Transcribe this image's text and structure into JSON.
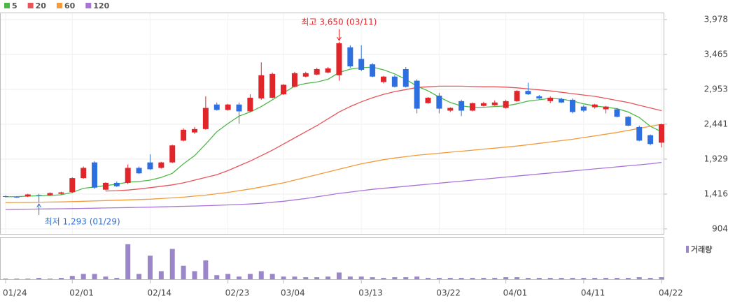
{
  "chart_data": {
    "type": "candlestick",
    "categories": [
      "01/24",
      null,
      null,
      null,
      null,
      null,
      "02/01",
      null,
      null,
      null,
      null,
      null,
      null,
      "02/14",
      null,
      null,
      null,
      null,
      null,
      null,
      "02/23",
      null,
      null,
      null,
      null,
      "03/04",
      null,
      null,
      null,
      null,
      null,
      null,
      "03/13",
      null,
      null,
      null,
      null,
      null,
      null,
      "03/22",
      null,
      null,
      null,
      null,
      null,
      "04/01",
      null,
      null,
      null,
      null,
      null,
      null,
      "04/11",
      null,
      null,
      null,
      null,
      null,
      null,
      "04/22"
    ],
    "open": [
      1385,
      1375,
      1380,
      1400,
      1400,
      1420,
      1445,
      1650,
      1880,
      1480,
      1580,
      1580,
      1800,
      1880,
      1800,
      1880,
      2200,
      2320,
      2370,
      2730,
      2650,
      2730,
      2630,
      2820,
      2830,
      2880,
      2990,
      3140,
      3170,
      3200,
      3160,
      3570,
      3400,
      3320,
      3060,
      3140,
      3250,
      3080,
      2750,
      2860,
      2640,
      2780,
      2640,
      2710,
      2720,
      2680,
      2780,
      2930,
      2850,
      2780,
      2810,
      2800,
      2700,
      2690,
      2660,
      2660,
      2550,
      2400,
      2280,
      2170
    ],
    "high": [
      1395,
      1385,
      1420,
      1420,
      1440,
      1450,
      1660,
      1820,
      1900,
      1590,
      1600,
      1850,
      1820,
      2000,
      1890,
      2140,
      2380,
      2400,
      2850,
      2760,
      2740,
      2760,
      2880,
      3350,
      3200,
      3030,
      3210,
      3210,
      3270,
      3280,
      3650,
      3600,
      3600,
      3340,
      3150,
      3160,
      3280,
      3100,
      2840,
      2900,
      2690,
      2800,
      2760,
      2770,
      2790,
      2800,
      2940,
      3050,
      2870,
      2850,
      2830,
      2820,
      2720,
      2740,
      2710,
      2680,
      2560,
      2420,
      2290,
      2450
    ],
    "low": [
      1365,
      1360,
      1370,
      1293,
      1390,
      1410,
      1430,
      1640,
      1490,
      1470,
      1520,
      1560,
      1710,
      1770,
      1790,
      1870,
      2190,
      2300,
      2360,
      2640,
      2640,
      2450,
      2620,
      2800,
      2820,
      2870,
      2980,
      3130,
      3160,
      3190,
      3080,
      3270,
      3220,
      3130,
      3040,
      2980,
      2980,
      2600,
      2740,
      2600,
      2620,
      2560,
      2630,
      2700,
      2710,
      2670,
      2770,
      2870,
      2810,
      2750,
      2750,
      2600,
      2620,
      2670,
      2600,
      2540,
      2410,
      2190,
      2130,
      2100
    ],
    "close": [
      1375,
      1370,
      1410,
      1395,
      1430,
      1440,
      1650,
      1800,
      1510,
      1580,
      1530,
      1800,
      1720,
      1780,
      1880,
      2130,
      2360,
      2370,
      2680,
      2650,
      2730,
      2630,
      2830,
      3160,
      3180,
      3020,
      3190,
      3190,
      3250,
      3260,
      3630,
      3290,
      3240,
      3140,
      3140,
      2990,
      2990,
      2670,
      2830,
      2670,
      2680,
      2640,
      2750,
      2750,
      2760,
      2780,
      2930,
      2880,
      2820,
      2830,
      2760,
      2620,
      2640,
      2730,
      2700,
      2550,
      2420,
      2200,
      2150,
      2440
    ],
    "up_color": "#e0262b",
    "down_color": "#2e6fe0",
    "series": [
      {
        "name": "5",
        "color": "#4cb848",
        "values": [
          1375,
          1378,
          1385,
          1390,
          1395,
          1405,
          1440,
          1500,
          1520,
          1540,
          1560,
          1590,
          1600,
          1620,
          1660,
          1720,
          1860,
          1980,
          2150,
          2330,
          2450,
          2560,
          2620,
          2700,
          2800,
          2900,
          3000,
          3040,
          3060,
          3100,
          3200,
          3250,
          3270,
          3280,
          3240,
          3180,
          3100,
          3000,
          2930,
          2840,
          2760,
          2710,
          2690,
          2690,
          2700,
          2710,
          2740,
          2780,
          2800,
          2820,
          2810,
          2780,
          2740,
          2710,
          2690,
          2670,
          2620,
          2540,
          2410,
          2330
        ]
      },
      {
        "name": "20",
        "color": "#e8545a",
        "values": [
          null,
          null,
          null,
          null,
          null,
          null,
          null,
          null,
          null,
          1460,
          1465,
          1475,
          1490,
          1510,
          1530,
          1550,
          1580,
          1620,
          1660,
          1700,
          1760,
          1830,
          1900,
          1980,
          2060,
          2150,
          2240,
          2330,
          2420,
          2520,
          2620,
          2700,
          2770,
          2830,
          2880,
          2920,
          2950,
          2980,
          2990,
          3000,
          3000,
          3000,
          2995,
          2990,
          2990,
          2985,
          2975,
          2960,
          2945,
          2930,
          2910,
          2890,
          2870,
          2850,
          2820,
          2790,
          2760,
          2720,
          2680,
          2640
        ]
      },
      {
        "name": "60",
        "color": "#f39a3a",
        "values": [
          1290,
          1292,
          1294,
          1296,
          1298,
          1300,
          1305,
          1310,
          1315,
          1320,
          1325,
          1330,
          1335,
          1340,
          1350,
          1360,
          1370,
          1385,
          1400,
          1420,
          1440,
          1465,
          1490,
          1520,
          1550,
          1580,
          1620,
          1660,
          1700,
          1740,
          1780,
          1820,
          1860,
          1890,
          1920,
          1945,
          1965,
          1985,
          2000,
          2015,
          2030,
          2045,
          2060,
          2075,
          2090,
          2105,
          2120,
          2140,
          2160,
          2180,
          2200,
          2220,
          2245,
          2270,
          2295,
          2320,
          2350,
          2380,
          2410,
          2440
        ]
      },
      {
        "name": "120",
        "color": "#a974d6",
        "values": [
          1190,
          1192,
          1194,
          1196,
          1198,
          1200,
          1202,
          1205,
          1208,
          1211,
          1214,
          1217,
          1220,
          1224,
          1228,
          1232,
          1236,
          1240,
          1245,
          1250,
          1256,
          1262,
          1270,
          1280,
          1295,
          1310,
          1330,
          1350,
          1375,
          1400,
          1425,
          1445,
          1465,
          1485,
          1500,
          1515,
          1530,
          1545,
          1560,
          1575,
          1590,
          1605,
          1620,
          1635,
          1650,
          1665,
          1680,
          1695,
          1710,
          1725,
          1740,
          1755,
          1770,
          1785,
          1800,
          1815,
          1830,
          1845,
          1860,
          1880
        ]
      }
    ],
    "volume": {
      "name": "거래량",
      "color": "#9b86c9",
      "ylim": [
        0,
        58
      ],
      "values": [
        1,
        1,
        1,
        2,
        1,
        2,
        5,
        8,
        8,
        4,
        2,
        52,
        8,
        35,
        12,
        45,
        20,
        12,
        28,
        6,
        8,
        4,
        8,
        12,
        8,
        4,
        4,
        3,
        3,
        4,
        10,
        4,
        4,
        3,
        2,
        3,
        3,
        4,
        2,
        2,
        2,
        2,
        2,
        2,
        2,
        3,
        3,
        2,
        2,
        2,
        2,
        2,
        2,
        2,
        2,
        2,
        2,
        3,
        2,
        3
      ]
    },
    "annotations": [
      {
        "text": "최고 3,650 (03/11)",
        "value": 3650,
        "color": "#e0262b"
      },
      {
        "text": "최저 1,293 (01/29)",
        "value": 1293,
        "color": "#2e6fe0"
      }
    ],
    "ylim": [
      831,
      4080
    ],
    "yticks": [
      904,
      {
        "value": 1416,
        "label": "1,416"
      },
      {
        "value": 1929,
        "label": "1,929"
      },
      {
        "value": 2441,
        "label": "2,441"
      },
      {
        "value": 2953,
        "label": "2,953"
      },
      {
        "value": 3465,
        "label": "3,465"
      },
      {
        "value": 3978,
        "label": "3,978"
      }
    ],
    "grid": true
  }
}
